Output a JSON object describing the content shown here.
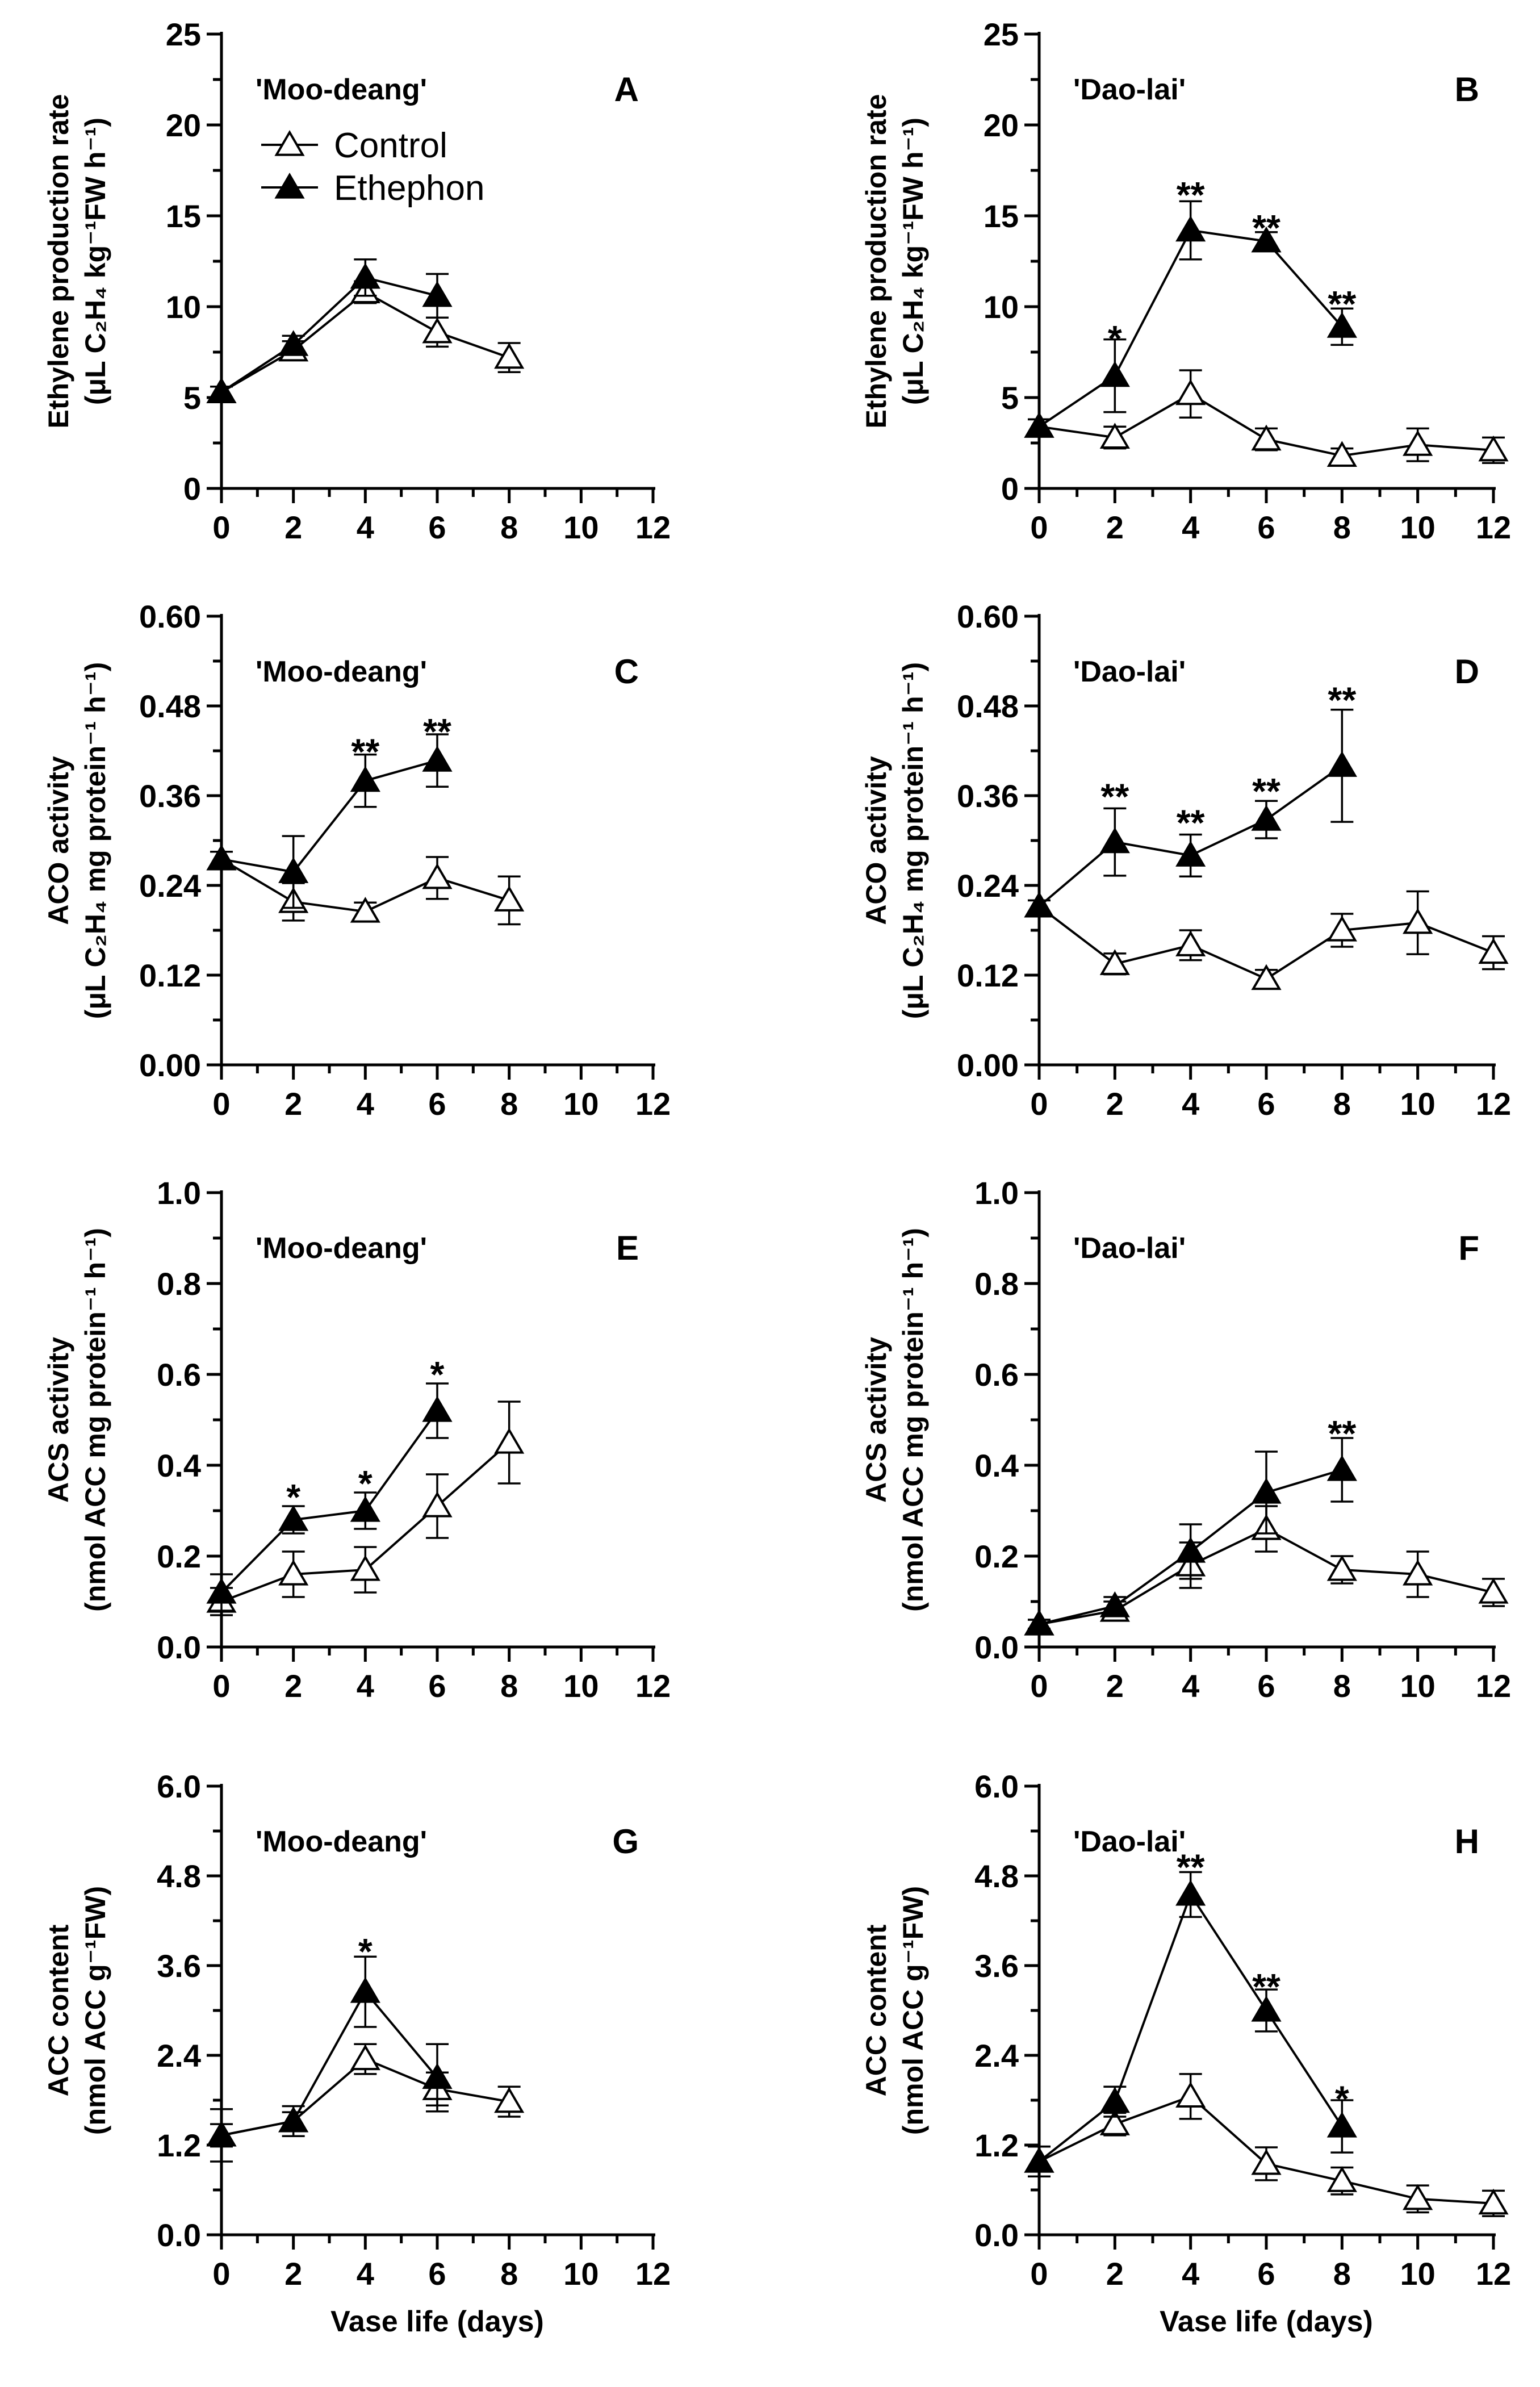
{
  "chart_data": [
    {
      "id": "A",
      "type": "line",
      "panel_label": "A",
      "cultivar": "'Moo-deang'",
      "ylabel_line1": "Ethylene production rate",
      "ylabel_line2": "(μL C₂H₄ kg⁻¹FW h⁻¹)",
      "xlabel": "",
      "xlim": [
        0,
        12
      ],
      "xticks": [
        "0",
        "2",
        "4",
        "6",
        "8",
        "10",
        "12"
      ],
      "ylim": [
        0,
        25
      ],
      "yticks": [
        "0",
        "5",
        "10",
        "15",
        "20",
        "25"
      ],
      "legend": {
        "control": "Control",
        "ethephon": "Ethephon"
      },
      "series": [
        {
          "name": "Control",
          "marker": "open-triangle",
          "x": [
            0,
            2,
            4,
            6,
            8
          ],
          "y": [
            5.3,
            7.6,
            10.8,
            8.6,
            7.2
          ],
          "err": [
            0.3,
            0.5,
            0.6,
            0.8,
            0.8
          ]
        },
        {
          "name": "Ethephon",
          "marker": "filled-triangle",
          "x": [
            0,
            2,
            4,
            6
          ],
          "y": [
            5.3,
            7.9,
            11.6,
            10.6
          ],
          "err": [
            0.3,
            0.5,
            1.0,
            1.2
          ]
        }
      ],
      "significance": []
    },
    {
      "id": "B",
      "type": "line",
      "panel_label": "B",
      "cultivar": "'Dao-lai'",
      "ylabel_line1": "Ethylene production rate",
      "ylabel_line2": "(μL C₂H₄ kg⁻¹FW h⁻¹)",
      "xlabel": "",
      "xlim": [
        0,
        12
      ],
      "xticks": [
        "0",
        "2",
        "4",
        "6",
        "8",
        "10",
        "12"
      ],
      "ylim": [
        0,
        25
      ],
      "yticks": [
        "0",
        "5",
        "10",
        "15",
        "20",
        "25"
      ],
      "series": [
        {
          "name": "Control",
          "marker": "open-triangle",
          "x": [
            0,
            2,
            4,
            6,
            8,
            10,
            12
          ],
          "y": [
            3.4,
            2.8,
            5.2,
            2.7,
            1.8,
            2.4,
            2.1
          ],
          "err": [
            0.4,
            0.6,
            1.3,
            0.6,
            0.4,
            0.9,
            0.7
          ]
        },
        {
          "name": "Ethephon",
          "marker": "filled-triangle",
          "x": [
            0,
            2,
            4,
            6,
            8
          ],
          "y": [
            3.4,
            6.2,
            14.2,
            13.6,
            8.9
          ],
          "err": [
            0.4,
            2.0,
            1.6,
            0.5,
            1.0
          ]
        }
      ],
      "significance": [
        {
          "x": 2,
          "label": "*",
          "y": 8.5
        },
        {
          "x": 4,
          "label": "**",
          "y": 16.4
        },
        {
          "x": 6,
          "label": "**",
          "y": 14.6
        },
        {
          "x": 8,
          "label": "**",
          "y": 10.4
        }
      ]
    },
    {
      "id": "C",
      "type": "line",
      "panel_label": "C",
      "cultivar": "'Moo-deang'",
      "ylabel_line1": "ACO activity",
      "ylabel_line2": "(μL C₂H₄ mg protein⁻¹ h⁻¹)",
      "xlabel": "",
      "xlim": [
        0,
        12
      ],
      "xticks": [
        "0",
        "2",
        "4",
        "6",
        "8",
        "10",
        "12"
      ],
      "ylim": [
        0,
        0.6
      ],
      "yticks": [
        "0.00",
        "0.12",
        "0.24",
        "0.36",
        "0.48",
        "0.60"
      ],
      "series": [
        {
          "name": "Control",
          "marker": "open-triangle",
          "x": [
            0,
            2,
            4,
            6,
            8
          ],
          "y": [
            0.275,
            0.218,
            0.205,
            0.25,
            0.22
          ],
          "err": [
            0.01,
            0.025,
            0.012,
            0.028,
            0.032
          ]
        },
        {
          "name": "Ethephon",
          "marker": "filled-triangle",
          "x": [
            0,
            2,
            4,
            6
          ],
          "y": [
            0.275,
            0.258,
            0.38,
            0.407
          ],
          "err": [
            0.01,
            0.048,
            0.035,
            0.035
          ]
        }
      ],
      "significance": [
        {
          "x": 4,
          "label": "**",
          "y": 0.425
        },
        {
          "x": 6,
          "label": "**",
          "y": 0.452
        }
      ]
    },
    {
      "id": "D",
      "type": "line",
      "panel_label": "D",
      "cultivar": "'Dao-lai'",
      "ylabel_line1": "ACO activity",
      "ylabel_line2": "(μL C₂H₄ mg protein⁻¹ h⁻¹)",
      "xlabel": "",
      "xlim": [
        0,
        12
      ],
      "xticks": [
        "0",
        "2",
        "4",
        "6",
        "8",
        "10",
        "12"
      ],
      "ylim": [
        0,
        0.6
      ],
      "yticks": [
        "0.00",
        "0.12",
        "0.24",
        "0.36",
        "0.48",
        "0.60"
      ],
      "series": [
        {
          "name": "Control",
          "marker": "open-triangle",
          "x": [
            0,
            2,
            4,
            6,
            8,
            10,
            12
          ],
          "y": [
            0.212,
            0.135,
            0.16,
            0.115,
            0.18,
            0.19,
            0.15
          ],
          "err": [
            0.008,
            0.014,
            0.02,
            0.012,
            0.022,
            0.042,
            0.022
          ]
        },
        {
          "name": "Ethephon",
          "marker": "filled-triangle",
          "x": [
            0,
            2,
            4,
            6,
            8
          ],
          "y": [
            0.212,
            0.298,
            0.28,
            0.328,
            0.4
          ],
          "err": [
            0.008,
            0.045,
            0.028,
            0.025,
            0.075
          ]
        }
      ],
      "significance": [
        {
          "x": 2,
          "label": "**",
          "y": 0.365
        },
        {
          "x": 4,
          "label": "**",
          "y": 0.33
        },
        {
          "x": 6,
          "label": "**",
          "y": 0.372
        },
        {
          "x": 8,
          "label": "**",
          "y": 0.494
        }
      ]
    },
    {
      "id": "E",
      "type": "line",
      "panel_label": "E",
      "cultivar": "'Moo-deang'",
      "ylabel_line1": "ACS activity",
      "ylabel_line2": "(nmol ACC mg protein⁻¹ h⁻¹)",
      "xlabel": "",
      "xlim": [
        0,
        12
      ],
      "xticks": [
        "0",
        "2",
        "4",
        "6",
        "8",
        "10",
        "12"
      ],
      "ylim": [
        0,
        1.0
      ],
      "yticks": [
        "0.0",
        "0.2",
        "0.4",
        "0.6",
        "0.8",
        "1.0"
      ],
      "series": [
        {
          "name": "Control",
          "marker": "open-triangle",
          "x": [
            0,
            2,
            4,
            6,
            8
          ],
          "y": [
            0.1,
            0.16,
            0.17,
            0.31,
            0.45
          ],
          "err": [
            0.03,
            0.05,
            0.05,
            0.07,
            0.09
          ]
        },
        {
          "name": "Ethephon",
          "marker": "filled-triangle",
          "x": [
            0,
            2,
            4,
            6
          ],
          "y": [
            0.12,
            0.28,
            0.3,
            0.52
          ],
          "err": [
            0.04,
            0.03,
            0.04,
            0.06
          ]
        }
      ],
      "significance": [
        {
          "x": 2,
          "label": "*",
          "y": 0.34
        },
        {
          "x": 4,
          "label": "*",
          "y": 0.37
        },
        {
          "x": 6,
          "label": "*",
          "y": 0.61
        }
      ]
    },
    {
      "id": "F",
      "type": "line",
      "panel_label": "F",
      "cultivar": "'Dao-lai'",
      "ylabel_line1": "ACS activity",
      "ylabel_line2": "(nmol ACC mg protein⁻¹ h⁻¹)",
      "xlabel": "",
      "xlim": [
        0,
        12
      ],
      "xticks": [
        "0",
        "2",
        "4",
        "6",
        "8",
        "10",
        "12"
      ],
      "ylim": [
        0,
        1.0
      ],
      "yticks": [
        "0.0",
        "0.2",
        "0.4",
        "0.6",
        "0.8",
        "1.0"
      ],
      "series": [
        {
          "name": "Control",
          "marker": "open-triangle",
          "x": [
            0,
            2,
            4,
            6,
            8,
            10,
            12
          ],
          "y": [
            0.05,
            0.08,
            0.18,
            0.26,
            0.17,
            0.16,
            0.12
          ],
          "err": [
            0.01,
            0.02,
            0.05,
            0.05,
            0.03,
            0.05,
            0.03
          ]
        },
        {
          "name": "Ethephon",
          "marker": "filled-triangle",
          "x": [
            0,
            2,
            4,
            6,
            8
          ],
          "y": [
            0.05,
            0.09,
            0.21,
            0.34,
            0.39
          ],
          "err": [
            0.01,
            0.02,
            0.06,
            0.09,
            0.07
          ]
        }
      ],
      "significance": [
        {
          "x": 8,
          "label": "**",
          "y": 0.48
        }
      ]
    },
    {
      "id": "G",
      "type": "line",
      "panel_label": "G",
      "cultivar": "'Moo-deang'",
      "ylabel_line1": "ACC content",
      "ylabel_line2": "(nmol ACC g⁻¹FW)",
      "xlabel": "Vase life (days)",
      "xlim": [
        0,
        12
      ],
      "xticks": [
        "0",
        "2",
        "4",
        "6",
        "8",
        "10",
        "12"
      ],
      "ylim": [
        0,
        6.0
      ],
      "yticks": [
        "0.0",
        "1.2",
        "2.4",
        "3.6",
        "4.8",
        "6.0"
      ],
      "series": [
        {
          "name": "Control",
          "marker": "open-triangle",
          "x": [
            0,
            2,
            4,
            6,
            8
          ],
          "y": [
            1.33,
            1.52,
            2.35,
            1.95,
            1.78
          ],
          "err": [
            0.15,
            0.12,
            0.2,
            0.22,
            0.2
          ]
        },
        {
          "name": "Ethephon",
          "marker": "filled-triangle",
          "x": [
            0,
            2,
            4,
            6
          ],
          "y": [
            1.33,
            1.52,
            3.25,
            2.1
          ],
          "err": [
            0.35,
            0.2,
            0.47,
            0.45
          ]
        }
      ],
      "significance": [
        {
          "x": 4,
          "label": "*",
          "y": 3.85
        }
      ]
    },
    {
      "id": "H",
      "type": "line",
      "panel_label": "H",
      "cultivar": "'Dao-lai'",
      "ylabel_line1": "ACC content",
      "ylabel_line2": "(nmol ACC g⁻¹FW)",
      "xlabel": "Vase life (days)",
      "xlim": [
        0,
        12
      ],
      "xticks": [
        "0",
        "2",
        "4",
        "6",
        "8",
        "10",
        "12"
      ],
      "ylim": [
        0,
        6.0
      ],
      "yticks": [
        "0.0",
        "1.2",
        "2.4",
        "3.6",
        "4.8",
        "6.0"
      ],
      "series": [
        {
          "name": "Control",
          "marker": "open-triangle",
          "x": [
            0,
            2,
            4,
            6,
            8,
            10,
            12
          ],
          "y": [
            0.98,
            1.48,
            1.85,
            0.95,
            0.72,
            0.48,
            0.42
          ],
          "err": [
            0.2,
            0.15,
            0.3,
            0.22,
            0.18,
            0.18,
            0.17
          ]
        },
        {
          "name": "Ethephon",
          "marker": "filled-triangle",
          "x": [
            0,
            2,
            4,
            6,
            8
          ],
          "y": [
            0.98,
            1.78,
            4.55,
            3.0,
            1.45
          ],
          "err": [
            0.2,
            0.2,
            0.3,
            0.28,
            0.35
          ]
        }
      ],
      "significance": [
        {
          "x": 4,
          "label": "**",
          "y": 4.98
        },
        {
          "x": 6,
          "label": "**",
          "y": 3.38
        },
        {
          "x": 8,
          "label": "*",
          "y": 1.88
        }
      ]
    }
  ]
}
